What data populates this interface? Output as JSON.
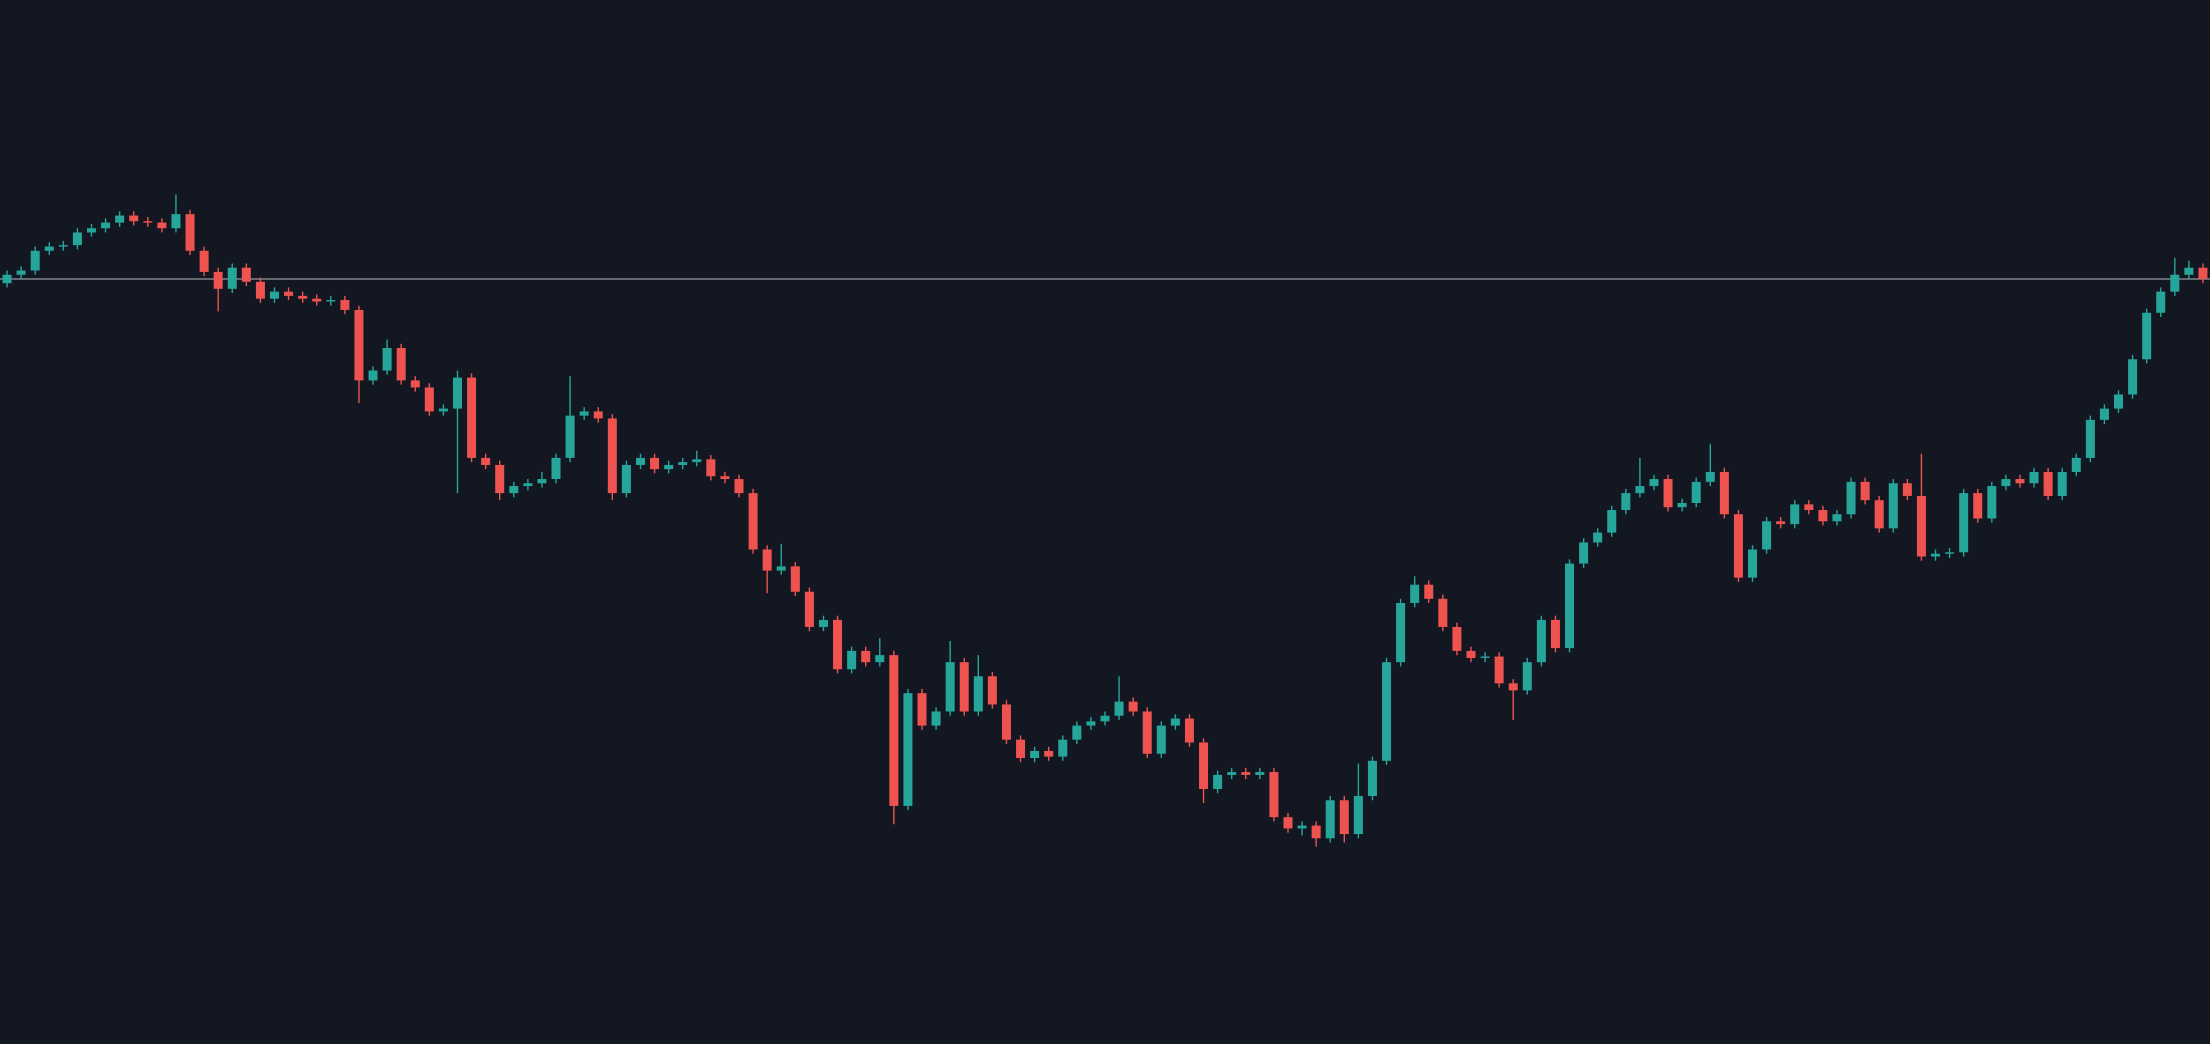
{
  "chart_data": {
    "type": "candlestick",
    "open": [
      540,
      546,
      549,
      563,
      566,
      567,
      576,
      579,
      583,
      588,
      584,
      583,
      579,
      589,
      563,
      548,
      536,
      551,
      541,
      529,
      534,
      531,
      529,
      527,
      528,
      521,
      471,
      478,
      494,
      471,
      466,
      449,
      451,
      473,
      416,
      411,
      391,
      396,
      398,
      401,
      416,
      446,
      449,
      444,
      391,
      411,
      416,
      408,
      411,
      413,
      415,
      403,
      401,
      391,
      351,
      336,
      339,
      321,
      296,
      301,
      266,
      279,
      271,
      276,
      169,
      249,
      226,
      236,
      271,
      236,
      261,
      241,
      216,
      203,
      208,
      204,
      216,
      226,
      229,
      233,
      243,
      236,
      206,
      226,
      231,
      214,
      181,
      191,
      193,
      191,
      193,
      161,
      153,
      155,
      146,
      173,
      149,
      176,
      201,
      271,
      313,
      326,
      316,
      296,
      279,
      274,
      275,
      256,
      251,
      271,
      301,
      281,
      341,
      356,
      363,
      379,
      391,
      396,
      401,
      381,
      384,
      399,
      406,
      376,
      331,
      351,
      371,
      369,
      383,
      379,
      371,
      376,
      399,
      386,
      366,
      398,
      389,
      346,
      348,
      349,
      391,
      373,
      396,
      401,
      398,
      406,
      389,
      406,
      416,
      443,
      451,
      461,
      486,
      519,
      534,
      546,
      551
    ],
    "high": [
      549,
      552,
      566,
      569,
      570,
      579,
      582,
      586,
      591,
      591,
      587,
      586,
      603,
      592,
      566,
      551,
      554,
      554,
      544,
      537,
      537,
      534,
      532,
      531,
      531,
      524,
      481,
      500,
      497,
      474,
      469,
      454,
      478,
      476,
      419,
      414,
      399,
      401,
      406,
      419,
      474,
      452,
      452,
      447,
      414,
      419,
      419,
      414,
      416,
      421,
      418,
      406,
      404,
      394,
      354,
      355,
      342,
      324,
      304,
      304,
      282,
      282,
      288,
      279,
      252,
      252,
      239,
      286,
      274,
      276,
      264,
      244,
      219,
      211,
      211,
      219,
      229,
      232,
      236,
      261,
      246,
      239,
      229,
      234,
      234,
      217,
      194,
      196,
      196,
      196,
      196,
      164,
      158,
      158,
      176,
      176,
      199,
      204,
      274,
      316,
      332,
      329,
      319,
      299,
      282,
      278,
      278,
      259,
      274,
      304,
      304,
      344,
      359,
      366,
      382,
      394,
      416,
      404,
      404,
      387,
      402,
      426,
      409,
      379,
      354,
      374,
      374,
      386,
      386,
      382,
      379,
      402,
      402,
      389,
      401,
      401,
      419,
      351,
      352,
      394,
      394,
      399,
      404,
      404,
      409,
      409,
      409,
      419,
      446,
      454,
      464,
      489,
      522,
      537,
      558,
      556,
      554
    ],
    "low": [
      537,
      543,
      546,
      560,
      563,
      564,
      573,
      576,
      580,
      581,
      580,
      576,
      576,
      560,
      545,
      520,
      533,
      538,
      526,
      526,
      528,
      526,
      524,
      524,
      518,
      455,
      468,
      475,
      468,
      463,
      446,
      446,
      391,
      413,
      408,
      386,
      388,
      393,
      395,
      398,
      413,
      443,
      441,
      386,
      388,
      408,
      405,
      405,
      408,
      410,
      400,
      398,
      388,
      348,
      320,
      333,
      318,
      293,
      293,
      263,
      263,
      268,
      268,
      156,
      166,
      223,
      223,
      233,
      233,
      233,
      238,
      213,
      200,
      200,
      201,
      201,
      213,
      223,
      226,
      230,
      233,
      203,
      203,
      223,
      211,
      171,
      178,
      188,
      188,
      188,
      158,
      150,
      148,
      140,
      143,
      143,
      146,
      173,
      198,
      268,
      310,
      313,
      293,
      276,
      271,
      271,
      253,
      230,
      248,
      268,
      278,
      278,
      338,
      353,
      360,
      376,
      388,
      393,
      378,
      378,
      381,
      396,
      373,
      328,
      328,
      348,
      366,
      366,
      376,
      368,
      368,
      373,
      383,
      363,
      363,
      386,
      343,
      343,
      345,
      346,
      370,
      370,
      393,
      395,
      395,
      386,
      386,
      403,
      413,
      440,
      448,
      458,
      483,
      516,
      531,
      543,
      540
    ],
    "close": [
      546,
      549,
      563,
      566,
      567,
      576,
      579,
      583,
      588,
      584,
      583,
      579,
      589,
      563,
      548,
      536,
      551,
      541,
      529,
      534,
      531,
      529,
      527,
      528,
      521,
      471,
      478,
      494,
      471,
      466,
      449,
      451,
      473,
      416,
      411,
      391,
      396,
      398,
      401,
      416,
      446,
      449,
      444,
      391,
      411,
      416,
      408,
      411,
      413,
      415,
      403,
      401,
      391,
      351,
      336,
      339,
      321,
      296,
      301,
      266,
      279,
      271,
      276,
      169,
      249,
      226,
      236,
      271,
      236,
      261,
      241,
      216,
      203,
      208,
      204,
      216,
      226,
      229,
      233,
      243,
      236,
      206,
      226,
      231,
      214,
      181,
      191,
      193,
      191,
      193,
      161,
      153,
      155,
      146,
      173,
      149,
      176,
      201,
      271,
      313,
      326,
      316,
      296,
      279,
      274,
      275,
      256,
      251,
      271,
      301,
      281,
      341,
      356,
      363,
      379,
      391,
      396,
      401,
      381,
      384,
      399,
      406,
      376,
      331,
      351,
      371,
      369,
      383,
      379,
      371,
      376,
      399,
      386,
      366,
      398,
      389,
      346,
      348,
      349,
      391,
      373,
      396,
      401,
      398,
      406,
      389,
      406,
      416,
      443,
      451,
      461,
      486,
      519,
      534,
      546,
      551,
      543
    ],
    "ylim": [
      0,
      741
    ],
    "up_color": "#26a69a",
    "down_color": "#ef5350",
    "price_line": 543,
    "price_line_color": "#9598a1",
    "background": "#131722"
  }
}
